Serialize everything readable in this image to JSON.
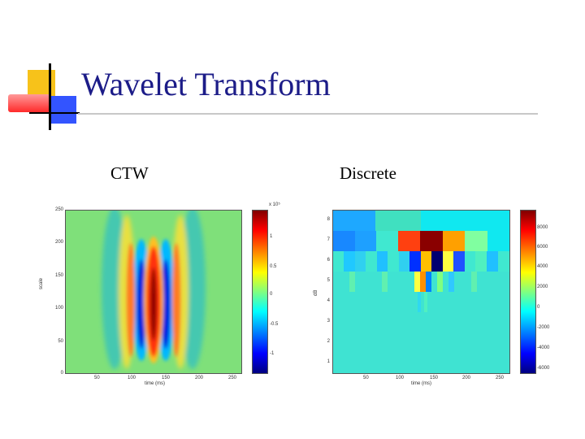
{
  "slide": {
    "title": "Wavelet Transform",
    "left_caption": "CTW",
    "right_caption": "Discrete"
  },
  "left_plot": {
    "x_ticks": [
      "50",
      "100",
      "150",
      "200",
      "250"
    ],
    "y_ticks": [
      "250",
      "200",
      "150",
      "100",
      "50",
      "0"
    ],
    "xlabel": "time (ms)",
    "ylabel": "scale",
    "colorbar_exponent": "x 10⁵",
    "colorbar_ticks": [
      "1",
      "0.5",
      "0",
      "-0.5",
      "-1"
    ]
  },
  "right_plot": {
    "x_ticks": [
      "50",
      "100",
      "150",
      "200",
      "250"
    ],
    "y_ticks": [
      "8",
      "7",
      "6",
      "5",
      "4",
      "3",
      "2",
      "1"
    ],
    "xlabel": "time (ms)",
    "ylabel": "dB",
    "colorbar_ticks": [
      "8000",
      "6000",
      "4000",
      "2000",
      "0",
      "-2000",
      "-4000",
      "-6000"
    ]
  },
  "colors": {
    "title": "#1c1c88",
    "logo_yellow": "#f7c21a",
    "logo_red": "#ff3333",
    "logo_blue": "#3354ff"
  }
}
